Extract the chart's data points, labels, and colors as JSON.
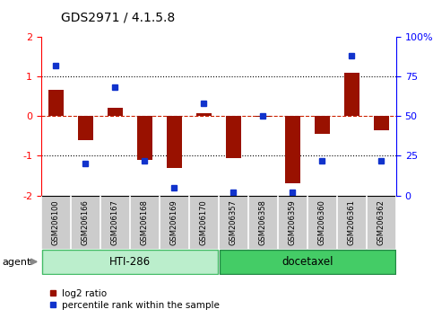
{
  "title": "GDS2971 / 4.1.5.8",
  "samples": [
    "GSM206100",
    "GSM206166",
    "GSM206167",
    "GSM206168",
    "GSM206169",
    "GSM206170",
    "GSM206357",
    "GSM206358",
    "GSM206359",
    "GSM206360",
    "GSM206361",
    "GSM206362"
  ],
  "log2_ratio": [
    0.65,
    -0.6,
    0.2,
    -1.1,
    -1.3,
    0.07,
    -1.05,
    -0.02,
    -1.7,
    -0.45,
    1.1,
    -0.35
  ],
  "percentile_rank": [
    82,
    20,
    68,
    22,
    5,
    58,
    2,
    50,
    2,
    22,
    88,
    22
  ],
  "groups": [
    {
      "label": "HTI-286",
      "start": 0,
      "end": 5,
      "color": "#bbeecc",
      "edge": "#44bb66"
    },
    {
      "label": "docetaxel",
      "start": 6,
      "end": 11,
      "color": "#44cc66",
      "edge": "#228844"
    }
  ],
  "ylim": [
    -2,
    2
  ],
  "yticks_left": [
    -2,
    -1,
    0,
    1,
    2
  ],
  "yticks_right": [
    0,
    25,
    50,
    75,
    100
  ],
  "bar_color": "#991100",
  "dot_color": "#1133cc",
  "zero_line_color": "#cc2200",
  "dotted_line_color": "#000000",
  "plot_bg": "#ffffff",
  "sample_bg": "#cccccc",
  "agent_label": "agent",
  "legend_log2": "log2 ratio",
  "legend_pct": "percentile rank within the sample"
}
